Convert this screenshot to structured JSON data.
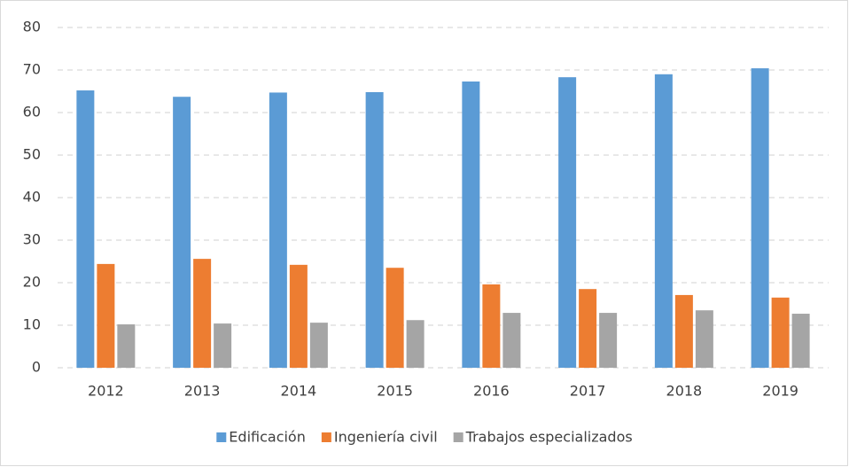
{
  "chart_data": {
    "type": "bar",
    "categories": [
      "2012",
      "2013",
      "2014",
      "2015",
      "2016",
      "2017",
      "2018",
      "2019"
    ],
    "series": [
      {
        "name": "Edificación",
        "color": "#5b9bd5",
        "values": [
          65.2,
          63.7,
          64.7,
          64.8,
          67.3,
          68.3,
          69.0,
          70.4
        ]
      },
      {
        "name": "Ingeniería civil",
        "color": "#ed7d31",
        "values": [
          24.4,
          25.6,
          24.2,
          23.5,
          19.6,
          18.5,
          17.1,
          16.5
        ]
      },
      {
        "name": "Trabajos especializados",
        "color": "#a5a5a5",
        "values": [
          10.2,
          10.4,
          10.6,
          11.2,
          12.9,
          12.9,
          13.5,
          12.7
        ]
      }
    ],
    "ylim": [
      0,
      80
    ],
    "yticks": [
      0,
      10,
      20,
      30,
      40,
      50,
      60,
      70,
      80
    ],
    "grid": true,
    "legend": "bottom"
  }
}
